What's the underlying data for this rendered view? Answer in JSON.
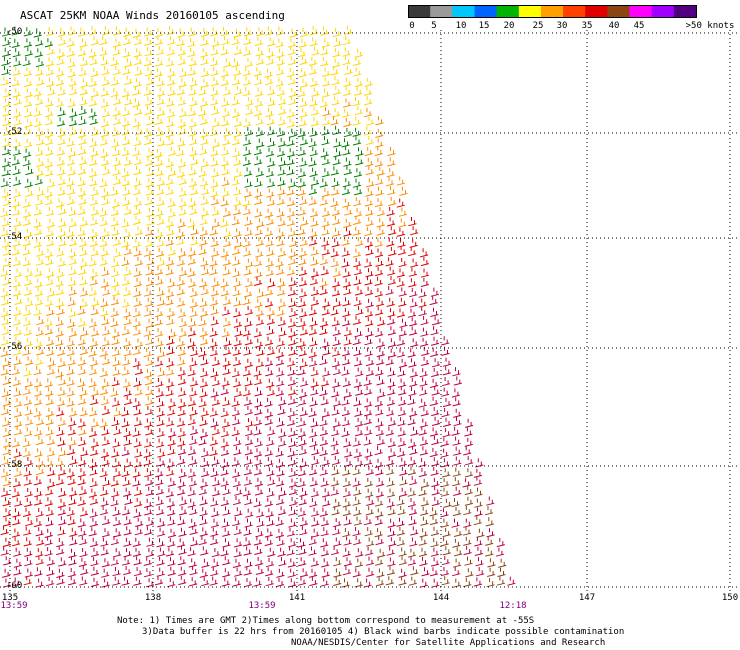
{
  "header": {
    "title": "ASCAT 25KM NOAA Winds 20160105 ascending"
  },
  "colorbar": {
    "labels": [
      "0",
      "5",
      "10",
      "15",
      "20",
      "25",
      "30",
      "35",
      "40",
      "45",
      ">50 knots"
    ],
    "colors": [
      "#3a3a3a",
      "#9a9a9a",
      "#00c8ff",
      "#0064ff",
      "#00b400",
      "#ffff00",
      "#ffa000",
      "#ff4000",
      "#e00000",
      "#8b4513",
      "#ff00ff",
      "#a000ff",
      "#500080"
    ]
  },
  "map": {
    "lat_labels": [
      "-50",
      "-52",
      "-54",
      "-56",
      "-58",
      "-60"
    ],
    "lon_labels": [
      "135",
      "138",
      "141",
      "144",
      "147",
      "150"
    ],
    "times": [
      "13:59",
      "13:59",
      "12:18"
    ],
    "barb_colors": {
      "green": "#008000",
      "yellow": "#ffd700",
      "orange": "#ff8c00",
      "red": "#e00000",
      "crimson": "#c0003c",
      "brown": "#8b4513"
    }
  },
  "notes": {
    "line1": "Note: 1) Times are GMT 2)Times along bottom correspond to measurement at -55S",
    "line2": "3)Data buffer is 22 hrs from 20160105 4) Black wind barbs indicate possible contamination",
    "line3": "NOAA/NESDIS/Center for Satellite Applications and Research"
  }
}
